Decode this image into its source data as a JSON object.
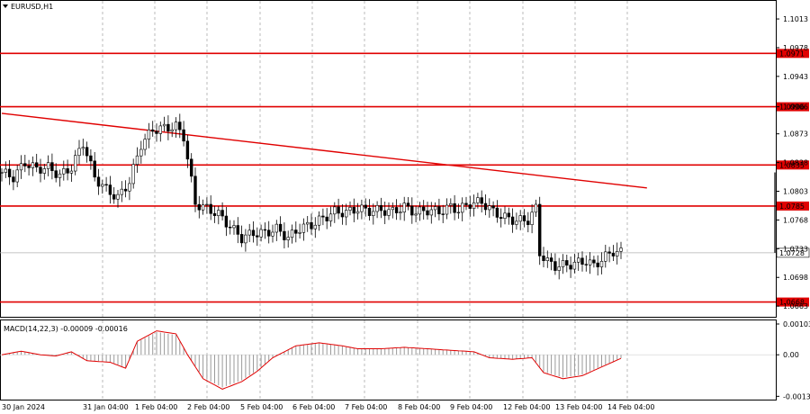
{
  "window": {
    "symbol": "EURUSD,H1"
  },
  "macd": {
    "label": "MACD(14,22,3) -0.00009 -0.00016"
  },
  "colors": {
    "line": "#e00000",
    "grid": "#aaaaaa",
    "price": "#000000",
    "macd_hist": "#9a9a9a",
    "signal": "#e00000"
  },
  "chart_data": {
    "type": "candlestick",
    "x_labels": [
      "30 Jan 2024",
      "31 Jan 04:00",
      "1 Feb 04:00",
      "2 Feb 04:00",
      "5 Feb 04:00",
      "6 Feb 04:00",
      "7 Feb 04:00",
      "8 Feb 04:00",
      "9 Feb 04:00",
      "12 Feb 04:00",
      "13 Feb 04:00",
      "14 Feb 04:00"
    ],
    "price_ticks": [
      "1.1013",
      "1.0978",
      "1.0943",
      "1.0906",
      "1.0873",
      "1.0838",
      "1.0803",
      "1.0768",
      "1.0733",
      "1.0698",
      "1.0663"
    ],
    "price_range": [
      1.065,
      1.1035
    ],
    "levels": [
      {
        "price": 1.0971,
        "label": "1.0971"
      },
      {
        "price": 1.0906,
        "label": "1.0906"
      },
      {
        "price": 1.0835,
        "label": "1.0835"
      },
      {
        "price": 1.0785,
        "label": "1.0785"
      },
      {
        "price": 1.0668,
        "label": "1.0668"
      }
    ],
    "current_price": {
      "price": 1.0728,
      "label": "1.0728"
    },
    "trendline": {
      "from": [
        0,
        1.0898
      ],
      "to": [
        136,
        1.0807
      ]
    },
    "price_path": [
      [
        0,
        1.0826
      ],
      [
        3,
        1.082
      ],
      [
        6,
        1.0838
      ],
      [
        9,
        1.083
      ],
      [
        12,
        1.0832
      ],
      [
        15,
        1.0822
      ],
      [
        18,
        1.0832
      ],
      [
        21,
        1.0862
      ],
      [
        24,
        1.082
      ],
      [
        27,
        1.0805
      ],
      [
        30,
        1.0795
      ],
      [
        33,
        1.0815
      ],
      [
        36,
        1.086
      ],
      [
        39,
        1.0878
      ],
      [
        42,
        1.088
      ],
      [
        45,
        1.0882
      ],
      [
        47,
        1.087
      ],
      [
        50,
        1.0788
      ],
      [
        53,
        1.0782
      ],
      [
        56,
        1.0775
      ],
      [
        59,
        1.076
      ],
      [
        62,
        1.0746
      ],
      [
        65,
        1.0752
      ],
      [
        68,
        1.0752
      ],
      [
        71,
        1.0757
      ],
      [
        74,
        1.0746
      ],
      [
        77,
        1.0758
      ],
      [
        80,
        1.0762
      ],
      [
        83,
        1.077
      ],
      [
        86,
        1.0778
      ],
      [
        89,
        1.0777
      ],
      [
        92,
        1.0782
      ],
      [
        95,
        1.0779
      ],
      [
        98,
        1.078
      ],
      [
        101,
        1.0778
      ],
      [
        104,
        1.0784
      ],
      [
        107,
        1.0777
      ],
      [
        110,
        1.078
      ],
      [
        113,
        1.0778
      ],
      [
        116,
        1.0784
      ],
      [
        118,
        1.078
      ],
      [
        121,
        1.0788
      ],
      [
        124,
        1.079
      ],
      [
        127,
        1.0778
      ],
      [
        130,
        1.0771
      ],
      [
        133,
        1.0767
      ],
      [
        136,
        1.0768
      ],
      [
        138,
        1.0782
      ],
      [
        139,
        1.0728
      ],
      [
        141,
        1.0717
      ],
      [
        143,
        1.0712
      ],
      [
        146,
        1.0713
      ],
      [
        149,
        1.0716
      ],
      [
        151,
        1.0718
      ],
      [
        153,
        1.0712
      ],
      [
        155,
        1.072
      ],
      [
        158,
        1.073
      ],
      [
        160,
        1.0728
      ]
    ],
    "last_bar_up_to": 1.0826,
    "macd_ticks": [
      "0.00103",
      "0.00",
      "-0.00139"
    ],
    "macd_range": [
      -0.0015,
      0.00115
    ],
    "macd_signal": [
      [
        0,
        0.0
      ],
      [
        5,
        0.00012
      ],
      [
        10,
        0.0
      ],
      [
        14,
        -4e-05
      ],
      [
        18,
        0.0001
      ],
      [
        22,
        -0.0002
      ],
      [
        28,
        -0.00025
      ],
      [
        32,
        -0.00045
      ],
      [
        35,
        0.00045
      ],
      [
        40,
        0.0008
      ],
      [
        45,
        0.0007
      ],
      [
        48,
        0.0
      ],
      [
        52,
        -0.0008
      ],
      [
        57,
        -0.00115
      ],
      [
        62,
        -0.0009
      ],
      [
        66,
        -0.00055
      ],
      [
        70,
        -0.0001
      ],
      [
        76,
        0.0003
      ],
      [
        82,
        0.0004
      ],
      [
        88,
        0.0003
      ],
      [
        92,
        0.0002
      ],
      [
        98,
        0.0002
      ],
      [
        104,
        0.00025
      ],
      [
        110,
        0.0002
      ],
      [
        116,
        0.00015
      ],
      [
        122,
        0.0001
      ],
      [
        126,
        -0.0001
      ],
      [
        132,
        -0.00015
      ],
      [
        137,
        -0.0001
      ],
      [
        140,
        -0.0006
      ],
      [
        145,
        -0.0008
      ],
      [
        150,
        -0.0007
      ],
      [
        156,
        -0.00035
      ],
      [
        160,
        -0.00012
      ]
    ]
  }
}
